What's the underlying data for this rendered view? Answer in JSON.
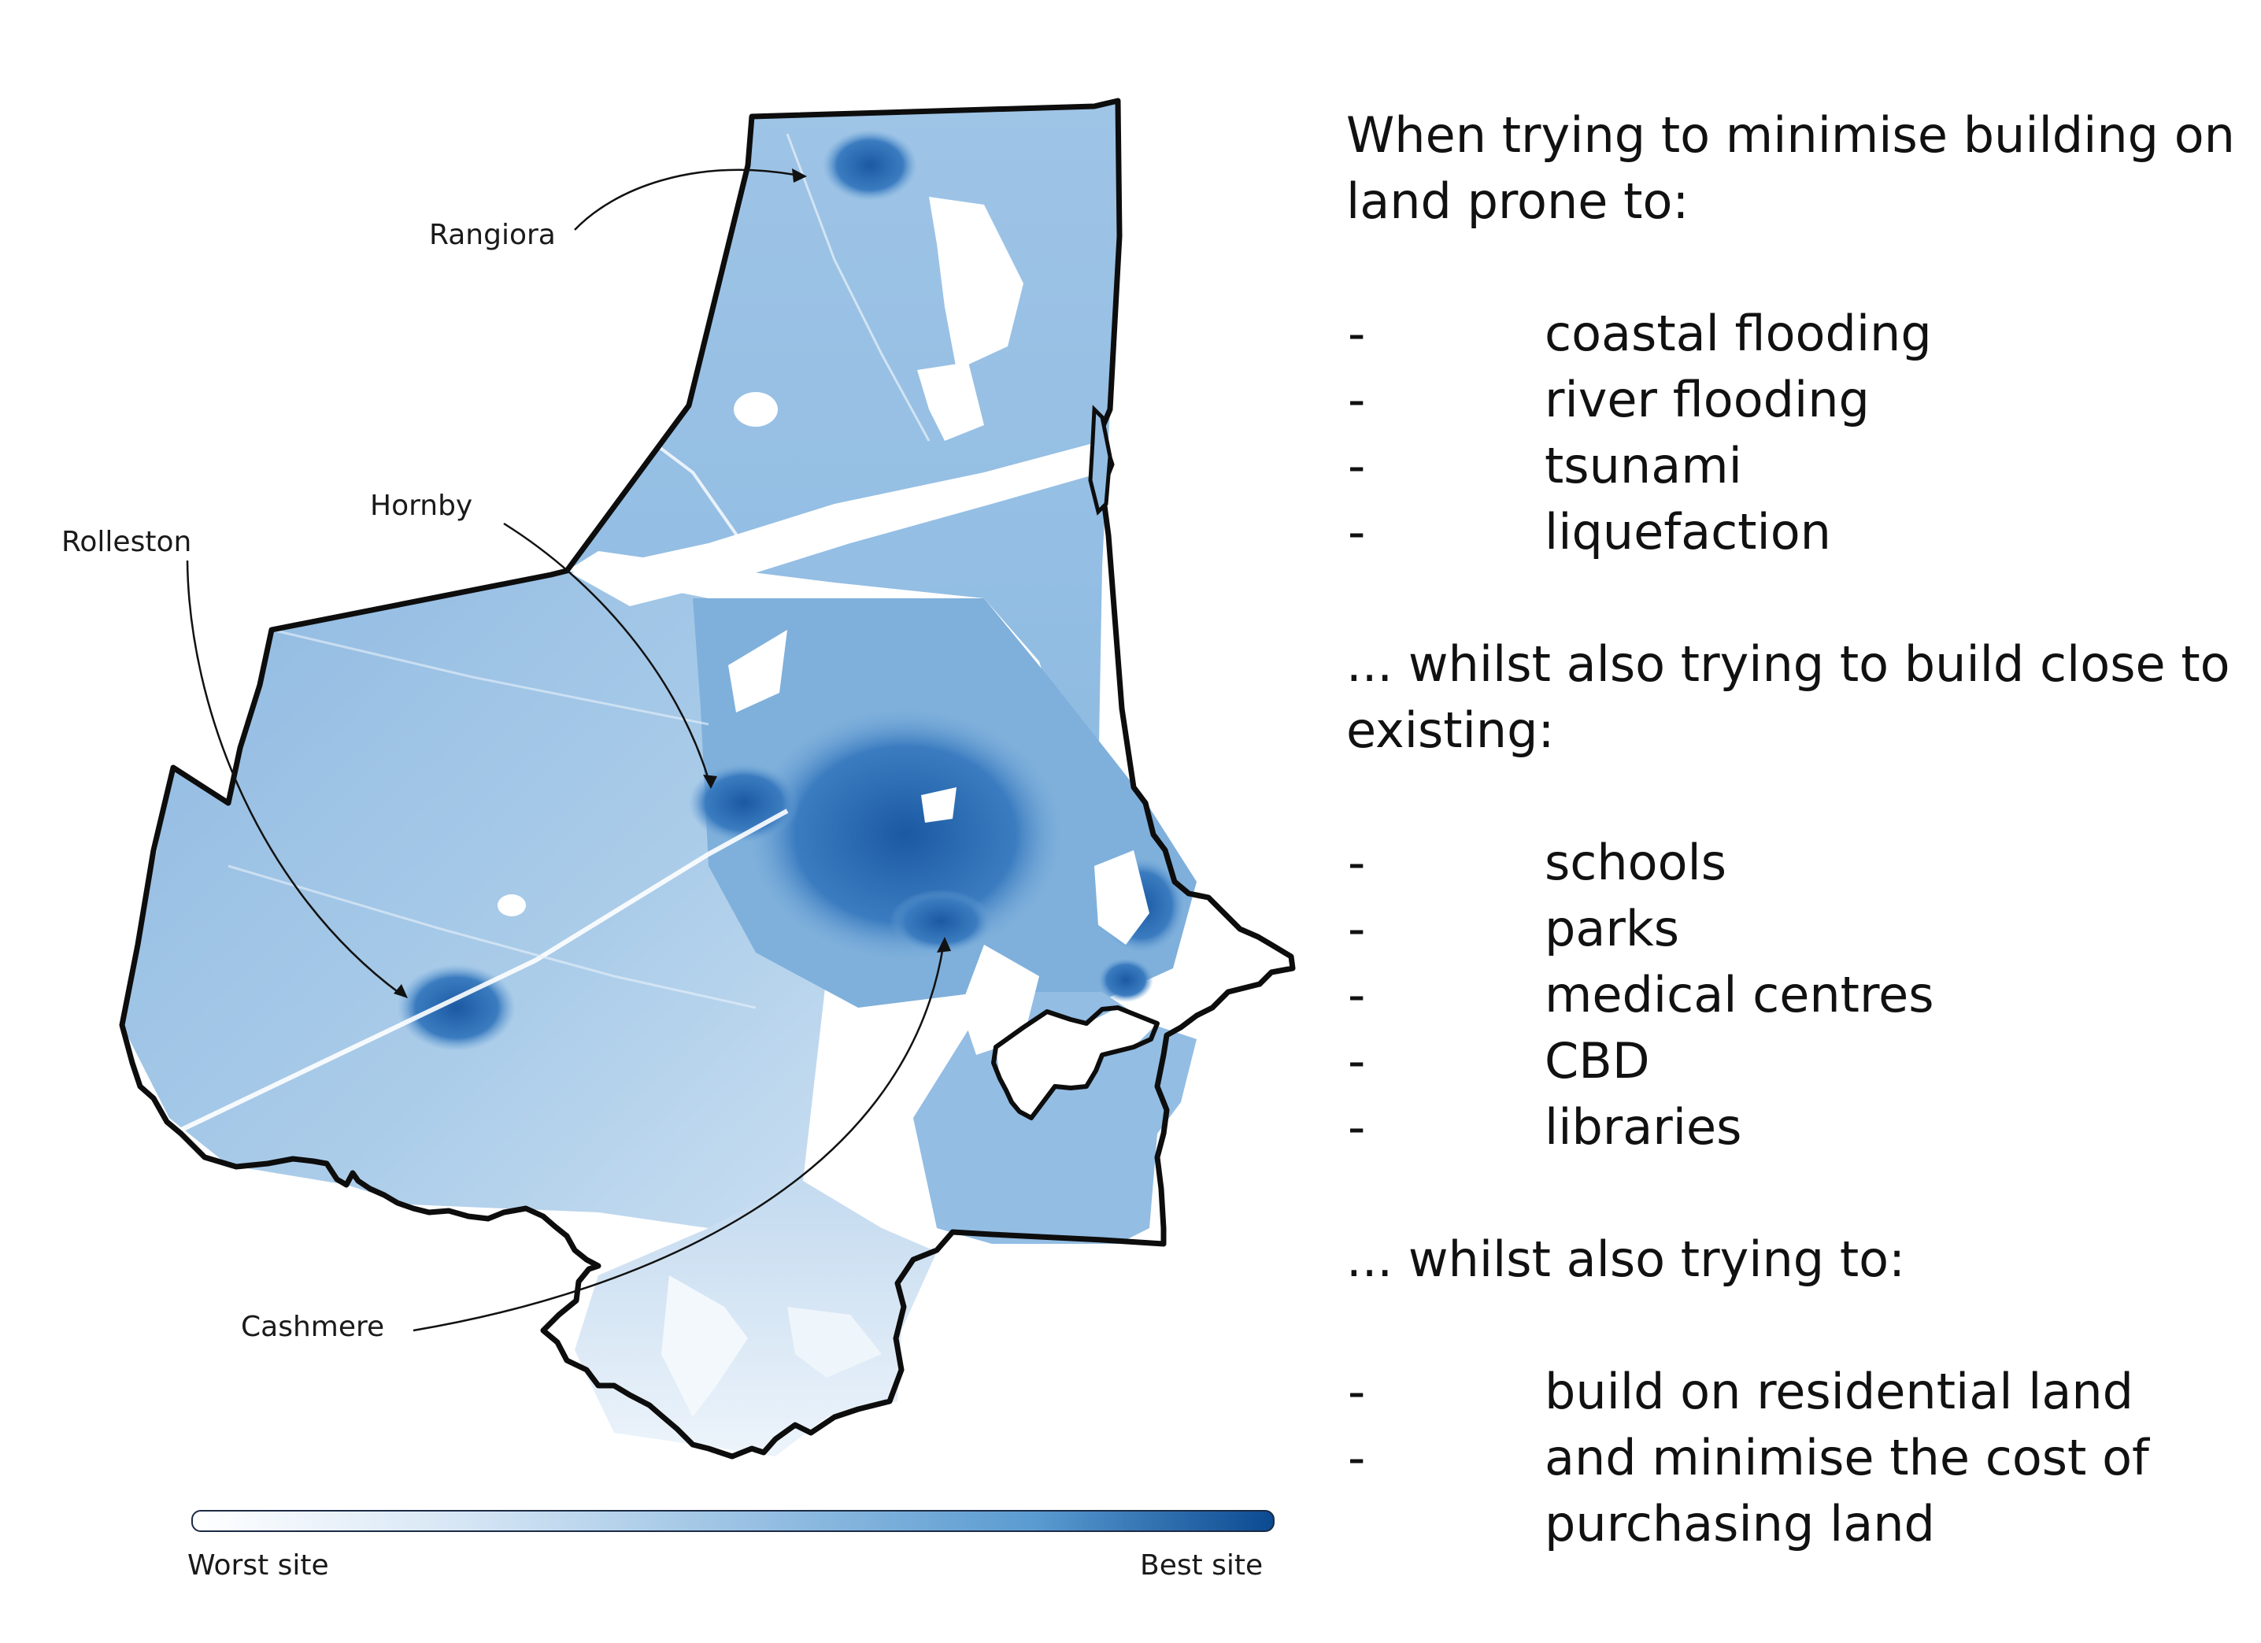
{
  "map": {
    "place_labels": {
      "rangiora": "Rangiora",
      "hornby": "Hornby",
      "rolleston": "Rolleston",
      "cashmere": "Cashmere"
    },
    "legend": {
      "low_label": "Worst site",
      "high_label": "Best site",
      "low_color": "#ffffff",
      "high_color": "#0b4a91"
    },
    "colors": {
      "outline": "#0d0d0d",
      "base_fill": "#a9cbe8",
      "urban_fill": "#1d5ea6",
      "excluded": "#ffffff"
    }
  },
  "text": {
    "intro_1": "When trying to minimise building on land prone to:",
    "hazards": [
      "coastal flooding",
      "river flooding",
      "tsunami",
      "liquefaction"
    ],
    "intro_2": "... whilst also trying to build close to existing:",
    "amenities": [
      "schools",
      "parks",
      "medical centres",
      "CBD",
      "libraries"
    ],
    "intro_3": "... whilst also trying to:",
    "goals": [
      "build on residential land",
      "and minimise the cost of purchasing land"
    ],
    "bullet": "-"
  }
}
